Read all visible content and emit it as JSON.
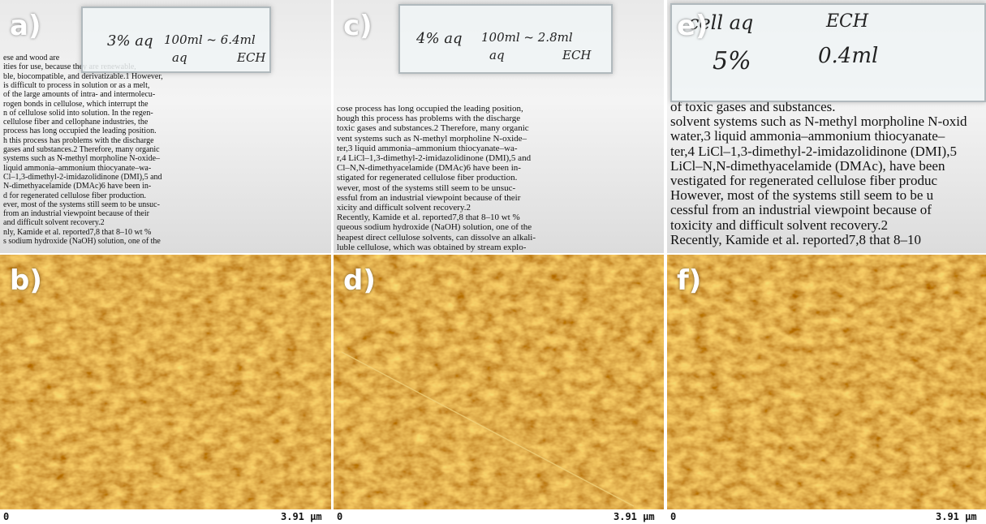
{
  "panels": [
    {
      "label": "a)",
      "note": [
        "3% aq",
        "100ml ~ 6.4ml",
        "aq",
        "ECH"
      ],
      "text": [
        "ese and wood are",
        "ities for use, because they are renewable,",
        "ble, biocompatible, and derivatizable.1 However,",
        "is difficult to process in solution or as a melt,",
        "of the large amounts of intra- and intermolecu-",
        "rogen bonds in cellulose, which interrupt the",
        "n of cellulose solid into solution. In the regen-",
        "cellulose fiber and cellophane industries, the",
        "process has long occupied the leading position.",
        "h this process has problems with the discharge",
        "gases and substances.2 Therefore, many organic",
        "systems such as N-methyl morpholine N-oxide–",
        "liquid ammonia–ammonium thiocyanate–wa-",
        "Cl–1,3-dimethyl-2-imidazolidinone (DMI),5 and",
        "N-dimethyacelamide (DMAc)6 have been in-",
        "d for regenerated cellulose fiber production.",
        "ever, most of the systems still seem to be unsuc-",
        "from an industrial viewpoint because of their",
        "and difficult solvent recovery.2",
        "nly, Kamide et al. reported7,8 that 8–10 wt %",
        "s sodium hydroxide (NaOH) solution, one of the"
      ]
    },
    {
      "label": "b)"
    },
    {
      "label": "c)",
      "note": [
        "4% aq",
        "100ml ~ 2.8ml",
        "aq",
        "ECH"
      ],
      "text": [
        "cose process has long occupied the leading position,",
        "hough this process has problems with the discharge",
        "toxic gases and substances.2 Therefore, many organic",
        "vent systems such as N-methyl morpholine N-oxide–",
        "ter,3 liquid ammonia–ammonium thiocyanate–wa-",
        "r,4 LiCl–1,3-dimethyl-2-imidazolidinone (DMI),5 and",
        "Cl–N,N-dimethyacelamide (DMAc)6 have been in-",
        "stigated for regenerated cellulose fiber production.",
        "wever, most of the systems still seem to be unsuc-",
        "essful from an industrial viewpoint because of their",
        "xicity and difficult solvent recovery.2",
        "Recently, Kamide et al. reported7,8 that 8–10 wt %",
        "queous sodium hydroxide (NaOH) solution, one of the",
        "heapest direct cellulose solvents, can dissolve an alkali-",
        "luble cellulose, which was obtained by stream explo-"
      ]
    },
    {
      "label": "d)"
    },
    {
      "label": "e)",
      "note": [
        "cell aq",
        "5%",
        "ECH",
        "0.4ml"
      ],
      "text": [
        "of toxic gases and substances.",
        "solvent systems such as N-methyl morpholine N-oxid",
        "water,3 liquid ammonia–ammonium thiocyanate–",
        "ter,4 LiCl–1,3-dimethyl-2-imidazolidinone (DMI),5",
        "LiCl–N,N-dimethyacelamide (DMAc), have been",
        "vestigated for regenerated cellulose fiber produc",
        "However, most of the systems still seem to be u",
        "cessful from an industrial viewpoint because of",
        "toxicity and difficult solvent recovery.2",
        "Recently, Kamide et al. reported7,8 that 8–10"
      ]
    },
    {
      "label": "f)"
    }
  ],
  "scale": [
    {
      "start": "0",
      "end": "3.91 μm"
    },
    {
      "start": "0",
      "end": "3.91 μm"
    },
    {
      "start": "0",
      "end": "3.91 μm"
    }
  ]
}
